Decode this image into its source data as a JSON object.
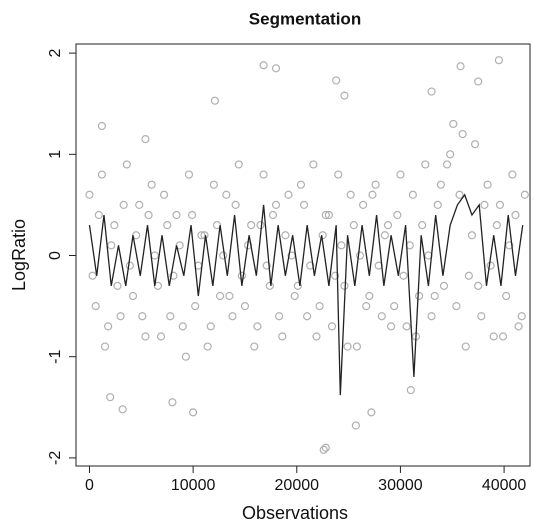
{
  "chart_data": {
    "type": "scatter",
    "title": "Segmentation",
    "x_label": "Observations",
    "y_label": "LogRatio",
    "xlim": [
      -1300,
      42500
    ],
    "ylim": [
      -2.08,
      2.09
    ],
    "xticks": [
      0,
      10000,
      20000,
      30000,
      40000
    ],
    "yticks": [
      -2,
      -1,
      0,
      1,
      2
    ],
    "series": [
      {
        "type": "scatter",
        "color": "#b0b0b0",
        "x": [
          0,
          600,
          1200,
          1800,
          2400,
          3000,
          3600,
          4200,
          4800,
          5400,
          6000,
          6600,
          7200,
          7800,
          8400,
          9000,
          9600,
          10200,
          10800,
          11400,
          12000,
          12600,
          13200,
          13800,
          14400,
          15000,
          15600,
          16200,
          16800,
          17400,
          18000,
          18600,
          19200,
          19800,
          20400,
          21000,
          21600,
          22200,
          22800,
          23400,
          24000,
          24600,
          25200,
          25800,
          26400,
          27000,
          27600,
          28200,
          28800,
          29400,
          30000,
          30600,
          31200,
          31800,
          32400,
          33000,
          33600,
          34200,
          34800,
          35400,
          36000,
          36600,
          37200,
          37800,
          38400,
          39000,
          39600,
          40200,
          40800,
          41400,
          42000
        ],
        "values": [
          0.6,
          -0.5,
          0.8,
          -0.7,
          0.3,
          -0.6,
          0.9,
          -0.4,
          0.5,
          -0.8,
          0.7,
          -0.3,
          0.6,
          -0.6,
          0.4,
          -0.7,
          0.8,
          -0.5,
          0.2,
          -0.9,
          0.7,
          -0.4,
          0.6,
          -0.6,
          0.9,
          -0.5,
          0.3,
          -0.7,
          0.8,
          -0.3,
          0.5,
          -0.8,
          0.6,
          -0.4,
          0.7,
          -0.6,
          0.9,
          -0.5,
          0.4,
          -0.7,
          0.8,
          -0.3,
          0.6,
          -0.9,
          0.5,
          -0.4,
          0.7,
          -0.6,
          0.3,
          -0.5,
          0.8,
          -0.7,
          0.6,
          -0.4,
          0.9,
          -0.6,
          0.5,
          -0.3,
          1.0,
          -0.5,
          1.2,
          -0.2,
          1.1,
          -0.6,
          0.7,
          -0.8,
          0.5,
          -0.4,
          0.8,
          -0.7,
          0.6
        ]
      },
      {
        "type": "scatter",
        "color": "#b0b0b0",
        "x": [
          300,
          900,
          1500,
          2100,
          2700,
          3300,
          3900,
          4500,
          5100,
          5700,
          6300,
          6900,
          7500,
          8100,
          8700,
          9300,
          9900,
          10500,
          11100,
          11700,
          12300,
          12900,
          13500,
          14100,
          14700,
          15300,
          15900,
          16500,
          17100,
          17700,
          18300,
          18900,
          19500,
          20100,
          20700,
          21300,
          21900,
          22500,
          23100,
          23700,
          24300,
          24900,
          25500,
          26100,
          26700,
          27300,
          27900,
          28500,
          29100,
          29700,
          30300,
          30900,
          31500,
          32100,
          32700,
          33300,
          33900,
          34500,
          35100,
          35700,
          36300,
          36900,
          37500,
          38100,
          38700,
          39300,
          39900,
          40500,
          41100,
          41700
        ],
        "values": [
          -0.2,
          0.4,
          -0.9,
          0.1,
          -0.3,
          0.5,
          -0.1,
          0.2,
          -0.6,
          0.4,
          0.0,
          -0.8,
          0.3,
          -0.2,
          0.1,
          -1.0,
          0.4,
          -0.1,
          0.2,
          -0.7,
          0.3,
          0.0,
          -0.4,
          0.5,
          -0.2,
          0.1,
          -0.9,
          0.3,
          -0.1,
          0.4,
          -0.6,
          0.2,
          0.0,
          -0.3,
          0.5,
          -0.1,
          -0.8,
          0.2,
          0.4,
          -0.2,
          0.1,
          -0.9,
          0.3,
          0.0,
          -0.5,
          0.6,
          -0.1,
          0.2,
          -0.7,
          0.4,
          -0.2,
          0.1,
          -0.8,
          0.3,
          0.0,
          -0.4,
          0.7,
          0.9,
          1.3,
          0.6,
          -0.9,
          0.2,
          -0.3,
          0.5,
          -0.1,
          0.3,
          -0.8,
          0.1,
          0.4,
          -0.6
        ]
      },
      {
        "type": "scatter",
        "color": "#b0b0b0",
        "x": [
          16800,
          18000,
          23800,
          24600,
          39500,
          35800,
          37500,
          22800,
          22600,
          25700,
          3200,
          10000,
          2000,
          31000,
          27200,
          8000,
          12100,
          1200,
          5400,
          33000
        ],
        "values": [
          1.88,
          1.85,
          1.73,
          1.58,
          1.93,
          1.87,
          1.72,
          -1.9,
          -1.92,
          -1.68,
          -1.52,
          -1.55,
          -1.4,
          -1.33,
          -1.55,
          -1.45,
          1.53,
          1.28,
          1.15,
          1.62
        ]
      },
      {
        "type": "line",
        "color": "#222222",
        "x": [
          0,
          700,
          1400,
          2100,
          2800,
          3500,
          4200,
          4900,
          5600,
          6300,
          7000,
          7700,
          8400,
          9100,
          9800,
          10500,
          11200,
          11900,
          12600,
          13300,
          14000,
          14700,
          15400,
          16100,
          16800,
          17500,
          18200,
          18900,
          19600,
          20300,
          21000,
          21700,
          22400,
          23100,
          23800,
          24200,
          24900,
          25600,
          26300,
          27000,
          27700,
          28400,
          29100,
          29800,
          30500,
          31300,
          32000,
          32700,
          33400,
          34100,
          34800,
          35500,
          36200,
          36900,
          37600,
          38300,
          39000,
          39700,
          40400,
          41100,
          41800
        ],
        "values": [
          0.3,
          -0.2,
          0.4,
          -0.3,
          0.1,
          -0.3,
          0.2,
          -0.2,
          0.3,
          -0.3,
          0.2,
          -0.3,
          0.1,
          -0.2,
          0.3,
          -0.4,
          0.2,
          -0.3,
          0.3,
          -0.2,
          0.4,
          -0.3,
          0.2,
          -0.2,
          0.5,
          -0.3,
          0.3,
          -0.2,
          0.2,
          -0.3,
          0.3,
          -0.2,
          0.2,
          -0.3,
          0.3,
          -1.38,
          0.2,
          -0.3,
          0.3,
          -0.2,
          0.4,
          -0.3,
          0.2,
          -0.2,
          0.3,
          -1.2,
          0.2,
          -0.3,
          0.4,
          -0.2,
          0.3,
          0.5,
          0.6,
          0.4,
          0.5,
          -0.3,
          0.2,
          -0.3,
          0.4,
          -0.2,
          0.3
        ]
      }
    ]
  }
}
